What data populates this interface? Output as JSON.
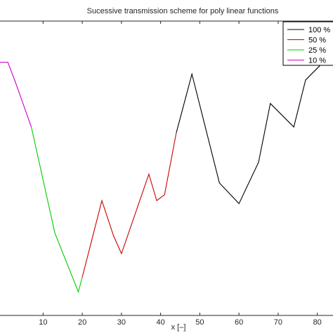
{
  "chart_data": {
    "type": "line",
    "title": "Sucessive transmission scheme for poly linear functions",
    "xlabel": "x [–]",
    "ylabel": "",
    "xlim": [
      -1,
      84
    ],
    "x_ticks": [
      "10",
      "20",
      "30",
      "40",
      "50",
      "60",
      "70",
      "80"
    ],
    "x_tick_values": [
      10,
      20,
      30,
      40,
      50,
      60,
      70,
      80
    ],
    "ylim": [
      0,
      1
    ],
    "grid": false,
    "legend_position": "top-right",
    "legend": [
      {
        "label": "100 %",
        "color": "#000000"
      },
      {
        "label": "50  %",
        "color": "#cc0000"
      },
      {
        "label": "25  %",
        "color": "#00cc00"
      },
      {
        "label": "10  %",
        "color": "#cc00cc"
      }
    ],
    "series": [
      {
        "name": "100 %",
        "color": "#000000",
        "x": [
          44,
          48,
          55,
          60,
          65,
          68,
          74,
          77,
          83
        ],
        "y": [
          0.62,
          0.82,
          0.45,
          0.38,
          0.52,
          0.72,
          0.64,
          0.8,
          0.88
        ]
      },
      {
        "name": "50  %",
        "color": "#cc0000",
        "x": [
          20,
          25,
          28,
          30,
          37,
          39,
          41,
          44
        ],
        "y": [
          0.13,
          0.39,
          0.27,
          0.21,
          0.48,
          0.39,
          0.41,
          0.62
        ]
      },
      {
        "name": "25  %",
        "color": "#00cc00",
        "x": [
          7,
          13,
          19,
          20
        ],
        "y": [
          0.64,
          0.28,
          0.08,
          0.13
        ]
      },
      {
        "name": "10  %",
        "color": "#cc00cc",
        "x": [
          -1,
          1,
          3,
          7
        ],
        "y": [
          0.86,
          0.86,
          0.79,
          0.64
        ]
      }
    ]
  }
}
